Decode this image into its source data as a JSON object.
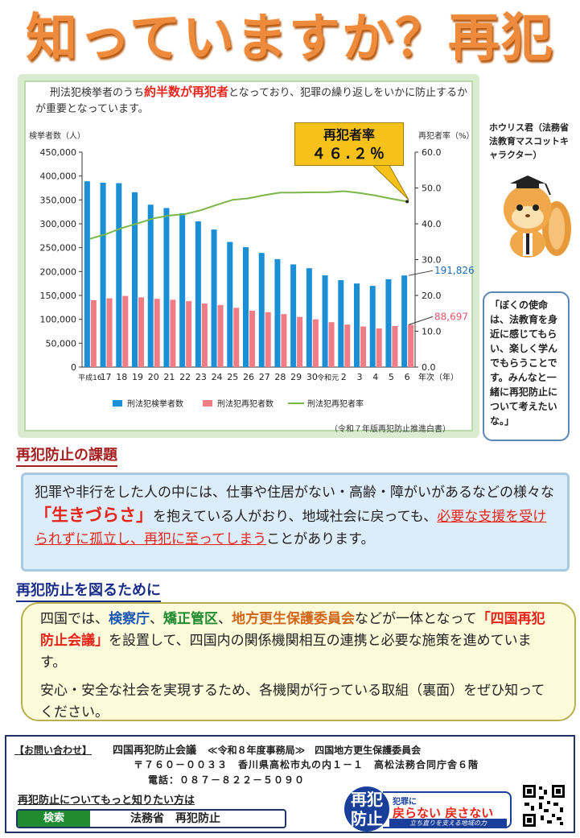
{
  "title": "知っていますか？再犯防止",
  "intro": {
    "text_a": "刑法犯検挙者のうち",
    "text_em": "約半数が再犯者",
    "text_b": "となっており、犯罪の繰り返しをいかに防止するかが重要となっています。"
  },
  "rate_box": {
    "label": "再犯者率",
    "value": "４６.２％"
  },
  "chart_data": {
    "type": "bar",
    "left_axis_label": "検挙者数（人）",
    "right_axis_label": "再犯者率（%）",
    "x_axis_suffix": "年次（年）",
    "categories": [
      "平成16",
      "17",
      "18",
      "19",
      "20",
      "21",
      "22",
      "23",
      "24",
      "25",
      "26",
      "27",
      "28",
      "29",
      "30",
      "令和元",
      "2",
      "3",
      "4",
      "5",
      "6"
    ],
    "ylim_left": [
      0,
      450000
    ],
    "ylim_right": [
      0,
      60
    ],
    "left_ticks": [
      "450,000",
      "400,000",
      "350,000",
      "300,000",
      "250,000",
      "200,000",
      "150,000",
      "100,000",
      "50,000",
      "0"
    ],
    "right_ticks": [
      "60.0",
      "50.0",
      "40.0",
      "30.0",
      "20.0",
      "10.0",
      "0.0"
    ],
    "series": [
      {
        "name": "刑法犯検挙者数",
        "kind": "bar",
        "color": "#1a8fd6",
        "values": [
          389000,
          386000,
          385000,
          366000,
          340000,
          333000,
          322000,
          305000,
          288000,
          262000,
          251000,
          239000,
          226000,
          215000,
          207000,
          192000,
          182000,
          175000,
          170000,
          184000,
          191826
        ]
      },
      {
        "name": "刑法犯再犯者数",
        "kind": "bar",
        "color": "#f07c86",
        "values": [
          140000,
          144000,
          149000,
          146000,
          143000,
          141000,
          138000,
          133000,
          130000,
          124000,
          118000,
          115000,
          111000,
          105000,
          100000,
          94000,
          89000,
          85000,
          81000,
          86000,
          88697
        ]
      },
      {
        "name": "刑法犯再犯者率",
        "kind": "line",
        "color": "#7ab648",
        "values": [
          35.8,
          37.1,
          38.8,
          40.1,
          41.5,
          42.3,
          42.7,
          43.8,
          45.3,
          46.7,
          47.1,
          48.0,
          48.7,
          48.7,
          48.8,
          48.8,
          49.1,
          48.6,
          47.9,
          47.0,
          46.2
        ]
      }
    ],
    "callouts": [
      "191,826",
      "88,697"
    ]
  },
  "source": "（令和７年版再犯防止推進白書）",
  "mascot": {
    "name": "ホウリス君（法務省法教育マスコットキャラクター）",
    "quote": "「ぼくの使命は、法教育を身近に感じてもらい、楽しく学んでもらうことです。みんなと一緒に再犯防止について考えたいな。」"
  },
  "issue": {
    "heading": "再犯防止の課題",
    "text_a": "犯罪や非行をした人の中には、仕事や住居がない・高齢・障がいがあるなどの様々な",
    "text_big": "「生きづらさ」",
    "text_b": "を抱えている人がおり、地域社会に戻っても、",
    "text_red": "必要な支援を受けられずに孤立し、再犯に至ってしまう",
    "text_c": "ことがあります。"
  },
  "measures": {
    "heading": "再犯防止を図るために",
    "p1_a": "四国では、",
    "org1": "検察庁",
    "sep1": "、",
    "org2": "矯正管区",
    "sep2": "、",
    "org3": "地方更生保護委員会",
    "p1_b": "などが一体となって",
    "council": "「四国再犯防止会議」",
    "p1_c": "を設置して、四国内の関係機関相互の連携と必要な施策を進めています。",
    "p2": "安心・安全な社会を実現するため、各機関が行っている取組（裏面）をぜひ知ってください。"
  },
  "contact": {
    "heading": "【お問い合わせ】",
    "org": "四国再犯防止会議",
    "office": "≪令和８年度事務局≫　四国地方更生保護委員会",
    "address": "〒７６０－００３３　香川県高松市丸の内１－１　高松法務合同庁舎６階",
    "phone": "電話：０８７－８２２－５０９０",
    "more": "再犯防止についてもっと知りたい方は",
    "search_button": "検索",
    "search_term": "法務省　再犯防止"
  },
  "logo": {
    "seal": "再犯防止",
    "line1": "犯罪に",
    "w1": "戻らない",
    "w2": "戻さない",
    "tagline": "立ち直りを支える地域の力"
  }
}
